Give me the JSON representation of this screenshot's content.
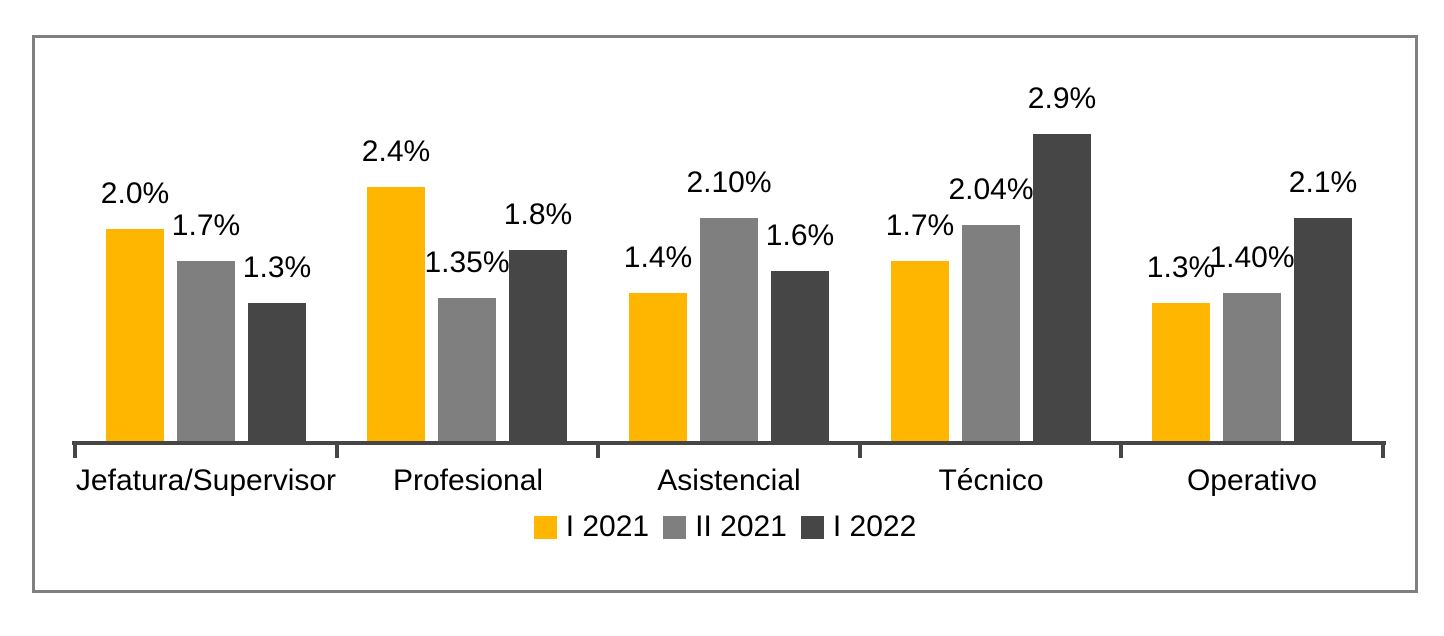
{
  "chart_data": {
    "type": "bar",
    "title": "",
    "categories": [
      "Jefatura/Supervisor",
      "Profesional",
      "Asistencial",
      "Técnico",
      "Operativo"
    ],
    "series": [
      {
        "name": "I 2021",
        "color": "#FFB600",
        "values": [
          2.0,
          2.4,
          1.4,
          1.7,
          1.3
        ],
        "labels": [
          "2.0%",
          "2.4%",
          "1.4%",
          "1.7%",
          "1.3%"
        ]
      },
      {
        "name": "II 2021",
        "color": "#7F7F7F",
        "values": [
          1.7,
          1.35,
          2.1,
          2.04,
          1.4
        ],
        "labels": [
          "1.7%",
          "1.35%",
          "2.10%",
          "2.04%",
          "1.40%"
        ]
      },
      {
        "name": "I 2022",
        "color": "#464646",
        "values": [
          1.3,
          1.8,
          1.6,
          2.9,
          2.1
        ],
        "labels": [
          "1.3%",
          "1.8%",
          "1.6%",
          "2.9%",
          "2.1%"
        ]
      }
    ],
    "ylim": [
      0,
      3.8
    ],
    "grid": false,
    "legend_position": "bottom",
    "data_labels": true,
    "axis_color": "#464646",
    "frame_border_color": "#808080",
    "background_color": "#FFFFFF",
    "text_color": "#000000"
  }
}
